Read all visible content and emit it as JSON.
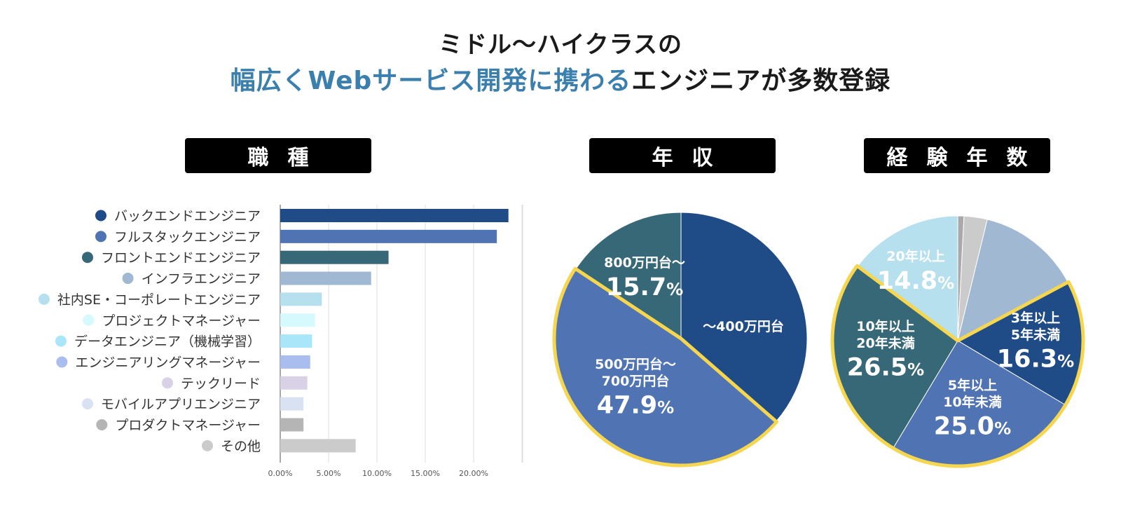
{
  "header": {
    "line1": "ミドル〜ハイクラスの",
    "line2_accent": "幅広くWebサービス開発に携わる",
    "line2_rest": "エンジニアが多数登録"
  },
  "section_labels": {
    "job": "職種",
    "salary": "年収",
    "experience": "経験年数"
  },
  "chart_data": [
    {
      "type": "bar",
      "orientation": "horizontal",
      "categories": [
        "バックエンドエンジニア",
        "フルスタックエンジニア",
        "フロントエンドエンジニア",
        "インフラエンジニア",
        "社内SE・コーポレートエンジニア",
        "プロジェクトマネージャー",
        "データエンジニア（機械学習）",
        "エンジニアリングマネージャー",
        "テックリード",
        "モバイルアプリエンジニア",
        "プロダクトマネージャー",
        "その他"
      ],
      "values": [
        23.6,
        22.4,
        11.2,
        9.4,
        4.3,
        3.6,
        3.3,
        3.1,
        2.8,
        2.4,
        2.4,
        7.8
      ],
      "colors": [
        "#1f4b87",
        "#4f73b3",
        "#376878",
        "#a1b8d3",
        "#b7e0ee",
        "#d5f9fc",
        "#a9e6fa",
        "#a9bdee",
        "#d9d2e6",
        "#d8e2f2",
        "#b5b5b5",
        "#cbcbcb"
      ],
      "xticks": [
        "0.00%",
        "5.00%",
        "10.00%",
        "15.00%",
        "20.00%"
      ],
      "xlim": [
        0,
        25
      ],
      "grid": true,
      "legend": "left"
    },
    {
      "type": "pie",
      "slices": [
        {
          "label": "〜400万円台",
          "value": 36.4,
          "color": "#1f4b87"
        },
        {
          "label": "500万円台〜\n700万円台",
          "value": 47.9,
          "pct": "47.9%",
          "color": "#4f73b3",
          "highlight": true
        },
        {
          "label": "800万円台〜",
          "value": 15.7,
          "pct": "15.7%",
          "color": "#376878"
        }
      ]
    },
    {
      "type": "pie",
      "slices": [
        {
          "label": "",
          "value": 0.8,
          "color": "#a9a9a9"
        },
        {
          "label": "",
          "value": 3.0,
          "color": "#cbcbcb"
        },
        {
          "label": "",
          "value": 13.4,
          "color": "#a1b8d3"
        },
        {
          "label": "3年以上\n5年未満",
          "value": 16.3,
          "pct": "16.3%",
          "color": "#1f4b87",
          "highlight": true
        },
        {
          "label": "5年以上\n10年未満",
          "value": 25.0,
          "pct": "25.0%",
          "color": "#4f73b3",
          "highlight": true
        },
        {
          "label": "10年以上\n20年未満",
          "value": 26.5,
          "pct": "26.5%",
          "color": "#376878",
          "highlight": true
        },
        {
          "label": "20年以上",
          "value": 14.8,
          "pct": "14.8%",
          "color": "#b7e0ee"
        }
      ]
    }
  ]
}
